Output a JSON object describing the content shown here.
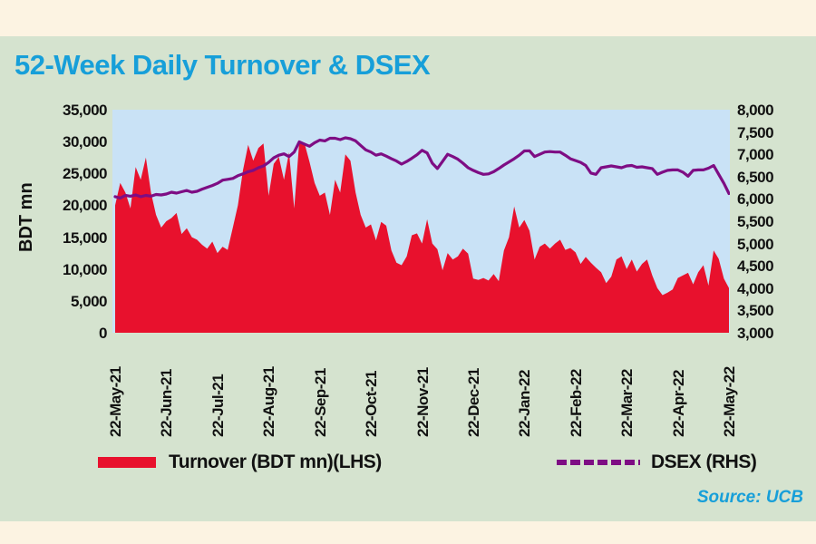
{
  "page": {
    "source": "Source: UCB"
  },
  "colors": {
    "page_bg": "#fcf3e2",
    "panel_bg": "#d5e3cf",
    "plot_bg": "#c9e2f6",
    "title_cyan": "#179fd9",
    "turnover_red": "#e8112d",
    "dsex_purple": "#7e0d84",
    "axis_text": "#111111"
  },
  "chart_data": {
    "type": "area",
    "title": "52-Week Daily Turnover & DSEX",
    "left_axis": {
      "label": "BDT mn",
      "min": 0,
      "max": 35000,
      "tick_step": 5000,
      "ticks": [
        "35,000",
        "30,000",
        "25,000",
        "20,000",
        "15,000",
        "10,000",
        "5,000",
        "0"
      ]
    },
    "right_axis": {
      "min": 3000,
      "max": 8000,
      "tick_step": 500,
      "ticks": [
        "8,000",
        "7,500",
        "7,000",
        "6,500",
        "6,000",
        "5,500",
        "5,000",
        "4,500",
        "4,000",
        "3,500",
        "3,000"
      ]
    },
    "x_tick_labels": [
      "22-May-21",
      "22-Jun-21",
      "22-Jul-21",
      "22-Aug-21",
      "22-Sep-21",
      "22-Oct-21",
      "22-Nov-21",
      "22-Dec-21",
      "22-Jan-22",
      "22-Feb-22",
      "22-Mar-22",
      "22-Apr-22",
      "22-May-22"
    ],
    "legend_position": "bottom",
    "grid": false,
    "series": [
      {
        "name": "Turnover (BDT mn)(LHS)",
        "type": "area",
        "axis": "left",
        "color": "#e8112d",
        "values": [
          20000,
          23500,
          22000,
          19500,
          26000,
          24000,
          27500,
          22000,
          18500,
          16500,
          17500,
          18000,
          18800,
          15500,
          16400,
          15000,
          14600,
          13800,
          13200,
          14300,
          12500,
          13500,
          13000,
          16500,
          20000,
          25500,
          29500,
          27000,
          29000,
          29700,
          21500,
          26500,
          27600,
          24000,
          28300,
          19500,
          30000,
          29800,
          26800,
          23500,
          21500,
          22000,
          18500,
          24000,
          22000,
          28000,
          27000,
          22000,
          18500,
          16500,
          17000,
          14500,
          17400,
          16800,
          12900,
          11000,
          10600,
          12000,
          15300,
          15600,
          14000,
          17800,
          14000,
          13100,
          9800,
          12500,
          11500,
          12000,
          13200,
          12400,
          8500,
          8300,
          8600,
          8200,
          9200,
          8100,
          12900,
          15000,
          19800,
          16500,
          17700,
          16000,
          11500,
          13500,
          14000,
          13200,
          14000,
          14600,
          13000,
          13300,
          12600,
          10800,
          11900,
          11000,
          10200,
          9500,
          7800,
          8800,
          11500,
          12000,
          10000,
          11500,
          9600,
          10800,
          11500,
          9000,
          7000,
          5900,
          6300,
          6800,
          8600,
          9000,
          9400,
          7600,
          9500,
          10600,
          7400,
          12900,
          11600,
          8500,
          7000
        ]
      },
      {
        "name": "DSEX (RHS)",
        "type": "line",
        "axis": "right",
        "color": "#7e0d84",
        "values": [
          6050,
          6020,
          6080,
          6060,
          6090,
          6050,
          6080,
          6060,
          6100,
          6090,
          6110,
          6150,
          6130,
          6160,
          6190,
          6150,
          6170,
          6220,
          6260,
          6300,
          6350,
          6420,
          6440,
          6460,
          6520,
          6560,
          6610,
          6640,
          6700,
          6740,
          6820,
          6920,
          6980,
          7010,
          6950,
          7050,
          7280,
          7230,
          7180,
          7260,
          7320,
          7300,
          7360,
          7360,
          7330,
          7370,
          7350,
          7300,
          7200,
          7100,
          7050,
          6980,
          7010,
          6960,
          6900,
          6850,
          6780,
          6840,
          6910,
          6990,
          7090,
          7030,
          6800,
          6680,
          6840,
          7000,
          6950,
          6890,
          6800,
          6700,
          6640,
          6590,
          6550,
          6560,
          6610,
          6680,
          6760,
          6830,
          6900,
          6980,
          7075,
          7080,
          6950,
          7000,
          7050,
          7060,
          7050,
          7050,
          6980,
          6900,
          6860,
          6820,
          6750,
          6580,
          6550,
          6700,
          6720,
          6740,
          6720,
          6700,
          6740,
          6750,
          6710,
          6720,
          6700,
          6680,
          6550,
          6600,
          6640,
          6650,
          6650,
          6600,
          6510,
          6640,
          6650,
          6650,
          6690,
          6750,
          6550,
          6350,
          6120
        ]
      }
    ]
  }
}
